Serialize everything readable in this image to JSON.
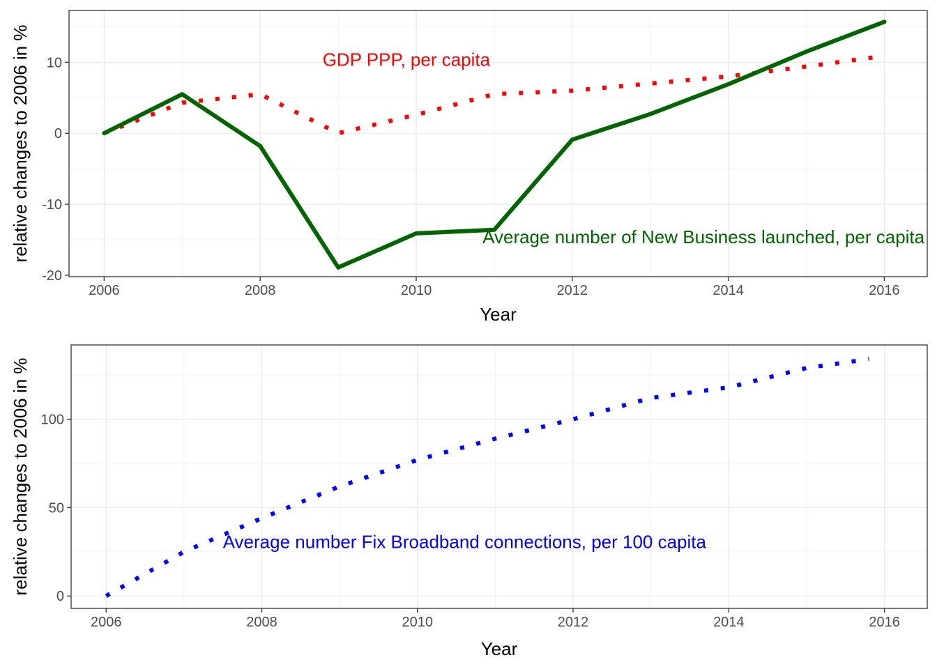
{
  "chart_data": [
    {
      "type": "line",
      "xlabel": "Year",
      "ylabel": "relative changes to 2006 in %",
      "xlim": [
        2005.55,
        2016.55
      ],
      "ylim": [
        -20.2,
        17.3
      ],
      "x_ticks": [
        2006,
        2008,
        2010,
        2012,
        2014,
        2016
      ],
      "y_ticks": [
        -20,
        -10,
        0,
        10
      ],
      "grid": true,
      "series": [
        {
          "name": "GDP PPP, per capita",
          "color": "#ff0000",
          "style": "dotted",
          "x": [
            2006,
            2007,
            2008,
            2009,
            2010,
            2011,
            2012,
            2013,
            2014,
            2015,
            2016
          ],
          "values": [
            0,
            4.3,
            5.5,
            0,
            2.6,
            5.5,
            6.0,
            7.0,
            8.0,
            9.4,
            10.9
          ]
        },
        {
          "name": "Average number of New Business launched, per capita",
          "color": "#006400",
          "style": "solid",
          "x": [
            2006,
            2007,
            2008,
            2009,
            2010,
            2011,
            2012,
            2013,
            2014,
            2015,
            2016
          ],
          "values": [
            0,
            5.5,
            -1.8,
            -18.9,
            -14.1,
            -13.6,
            -0.9,
            2.7,
            6.9,
            11.5,
            15.7
          ]
        }
      ],
      "annotations": [
        {
          "text": "GDP PPP, per capita",
          "x": 2008.8,
          "y": 9.5,
          "color": "#ff0000"
        },
        {
          "text": "Average number of New Business launched, per capita",
          "x": 2010.85,
          "y": -15.5,
          "color": "#006400"
        }
      ]
    },
    {
      "type": "line",
      "xlabel": "Year",
      "ylabel": "relative changes to 2006 in %",
      "xlim": [
        2005.55,
        2016.55
      ],
      "ylim": [
        -7,
        142
      ],
      "x_ticks": [
        2006,
        2008,
        2010,
        2012,
        2014,
        2016
      ],
      "y_ticks": [
        0,
        50,
        100
      ],
      "grid": true,
      "series": [
        {
          "name": "Average number Fix Broadband connections, per 100 capita",
          "color": "#0000ff",
          "style": "dotted",
          "x": [
            2006,
            2007,
            2008,
            2009,
            2010,
            2011,
            2012,
            2013,
            2014,
            2015,
            2015.8
          ],
          "values": [
            0,
            25,
            44,
            62,
            77,
            89,
            100,
            112,
            118,
            129,
            134
          ]
        }
      ],
      "annotations": [
        {
          "text": "Average number Fix Broadband connections, per 100 capita",
          "x": 2007.5,
          "y": 27,
          "color": "#0000ff"
        }
      ]
    }
  ]
}
